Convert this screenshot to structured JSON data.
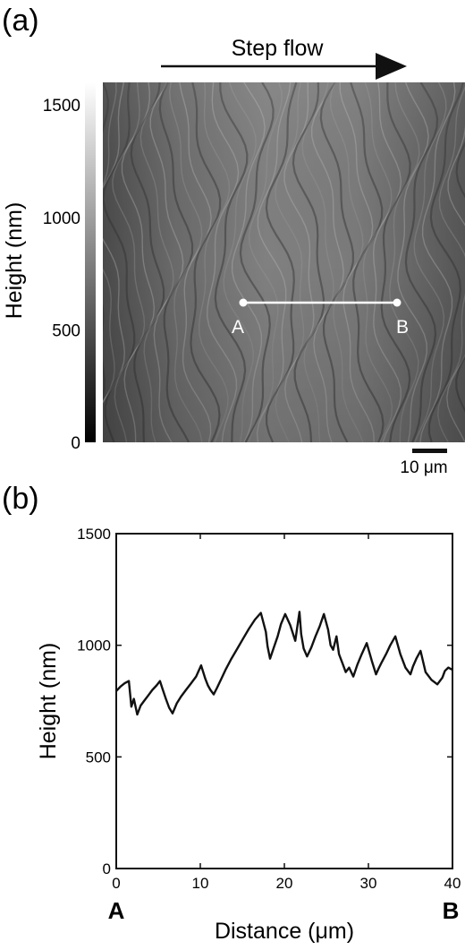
{
  "panel_a": {
    "label": "(a)",
    "arrow_label": "Step flow",
    "colorbar": {
      "title": "Height (nm)",
      "ticks": [
        {
          "value": 1500,
          "label": "1500"
        },
        {
          "value": 1000,
          "label": "1000"
        },
        {
          "value": 500,
          "label": "500"
        },
        {
          "value": 0,
          "label": "0"
        }
      ],
      "range": [
        0,
        1600
      ]
    },
    "line_start_label": "A",
    "line_end_label": "B",
    "scalebar_label": "10 μm"
  },
  "panel_b": {
    "label": "(b)",
    "start_label": "A",
    "end_label": "B"
  },
  "chart_data": {
    "type": "line",
    "xlabel": "Distance (μm)",
    "ylabel": "Height (nm)",
    "xlim": [
      0,
      40
    ],
    "ylim": [
      0,
      1500
    ],
    "xticks": [
      0,
      10,
      20,
      30,
      40
    ],
    "yticks": [
      0,
      500,
      1000,
      1500
    ],
    "x": [
      0,
      0.5,
      1,
      1.5,
      1.8,
      2.1,
      2.5,
      2.9,
      3.3,
      3.8,
      4.3,
      4.8,
      5.2,
      5.5,
      5.9,
      6.3,
      6.7,
      7.2,
      7.7,
      8.3,
      8.9,
      9.5,
      10.1,
      10.6,
      10.9,
      11.2,
      11.6,
      12.0,
      12.5,
      13.0,
      13.7,
      14.4,
      15.1,
      15.8,
      16.5,
      17.2,
      17.8,
      18.0,
      18.3,
      18.7,
      19.2,
      19.6,
      20.1,
      20.7,
      21.3,
      21.8,
      22.0,
      22.3,
      22.7,
      23.2,
      23.7,
      24.2,
      24.7,
      25.2,
      25.5,
      25.8,
      26.2,
      26.5,
      26.9,
      27.3,
      27.7,
      28.2,
      28.7,
      29.2,
      29.8,
      30.4,
      30.9,
      31.2,
      31.6,
      32.1,
      32.6,
      33.2,
      33.8,
      34.4,
      35.0,
      35.3,
      35.7,
      36.2,
      36.8,
      37.5,
      38.2,
      38.8,
      39.1,
      39.5,
      40
    ],
    "y": [
      795,
      815,
      830,
      840,
      725,
      760,
      690,
      730,
      750,
      775,
      800,
      820,
      840,
      805,
      760,
      720,
      695,
      740,
      770,
      800,
      830,
      860,
      910,
      850,
      820,
      800,
      780,
      810,
      850,
      890,
      940,
      985,
      1030,
      1075,
      1115,
      1145,
      1060,
      995,
      940,
      985,
      1040,
      1095,
      1140,
      1090,
      1020,
      1150,
      1050,
      985,
      950,
      990,
      1040,
      1085,
      1140,
      1070,
      1000,
      980,
      1040,
      960,
      920,
      880,
      900,
      860,
      915,
      960,
      1010,
      930,
      870,
      895,
      925,
      960,
      1000,
      1040,
      960,
      900,
      870,
      905,
      940,
      975,
      880,
      845,
      825,
      855,
      885,
      900,
      890
    ]
  }
}
